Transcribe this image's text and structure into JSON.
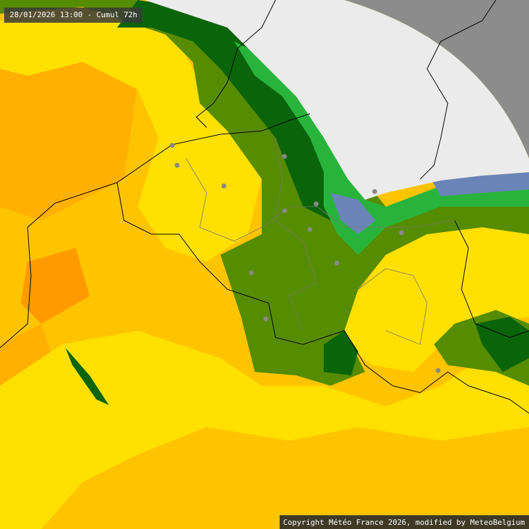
{
  "header": {
    "timestamp": "28/01/2026 13:00 - Cumul 72h"
  },
  "footer": {
    "copyright": "Copyright Météo France 2026, modified by MeteoBelgium"
  }
}
